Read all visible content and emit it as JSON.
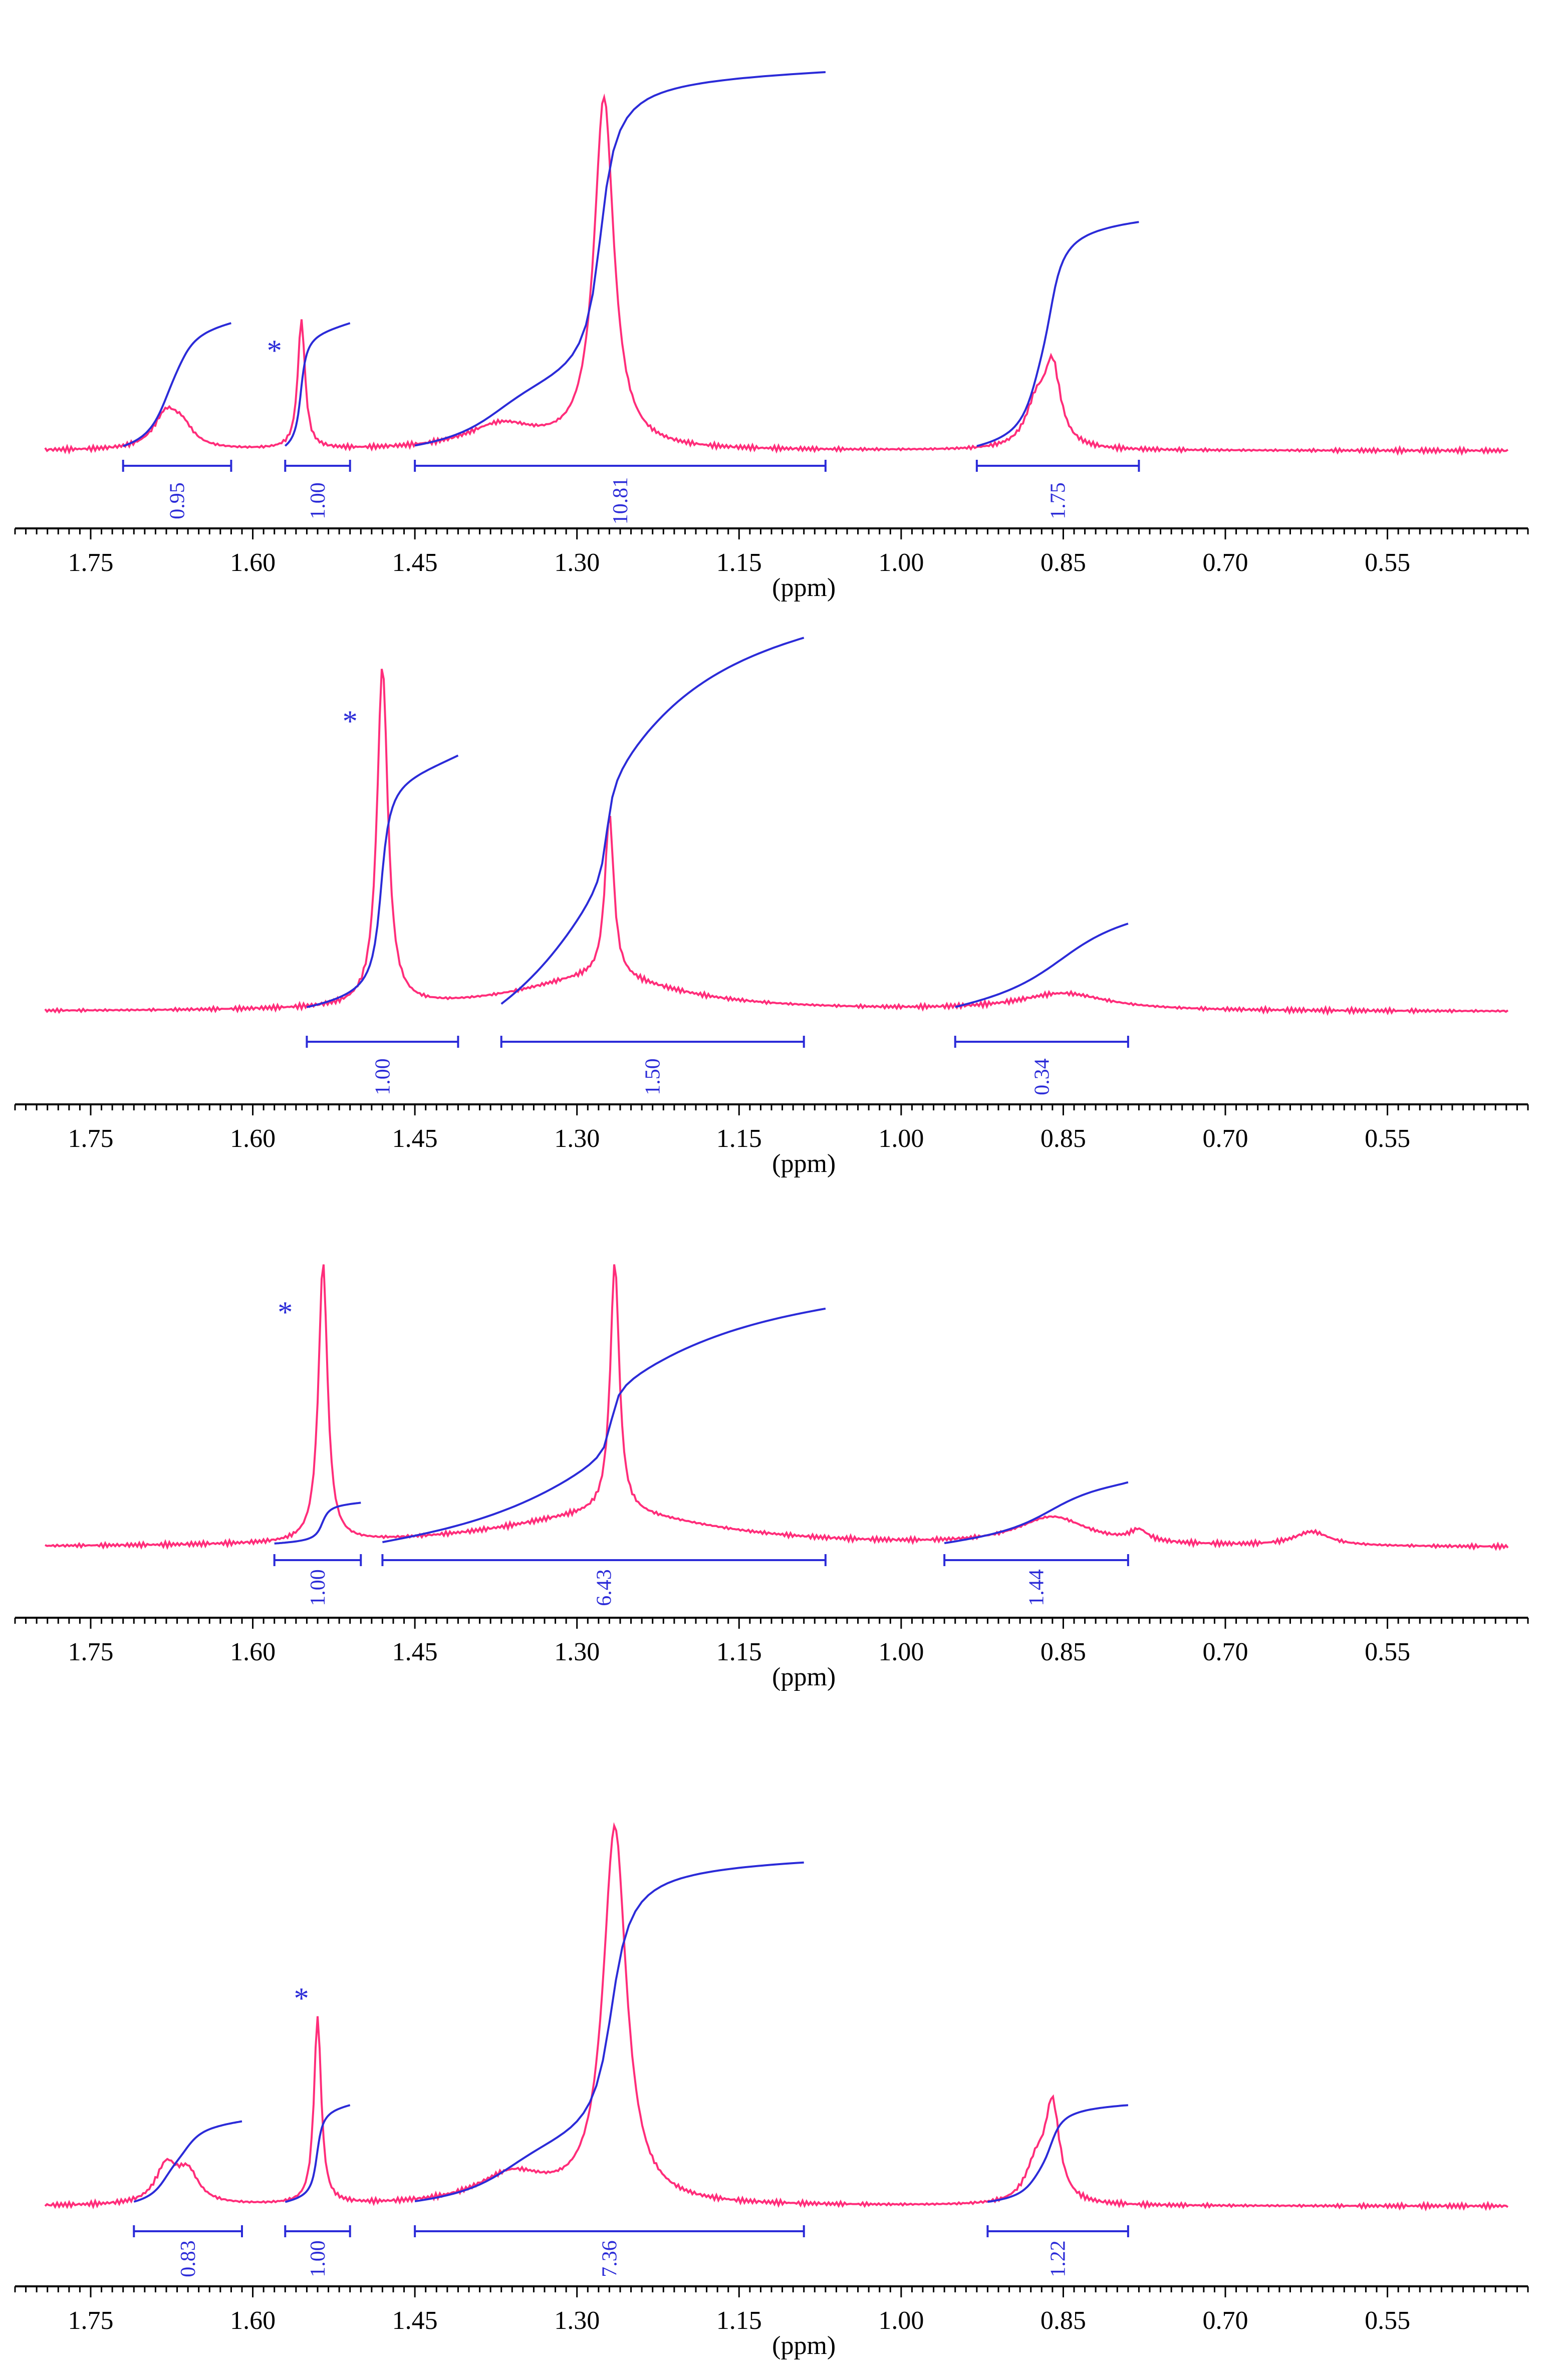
{
  "colors": {
    "spectrum": "#ff2d7a",
    "integral": "#2b2bd8",
    "axis": "#000000"
  },
  "chart_data": [
    {
      "type": "line",
      "title": "",
      "xlabel": "(ppm)",
      "xlim": [
        1.82,
        0.42
      ],
      "ticks": [
        "1.75",
        "1.60",
        "1.45",
        "1.30",
        "1.15",
        "1.00",
        "0.85",
        "0.70",
        "0.55"
      ],
      "marker": {
        "label": "*",
        "ppm": 1.58
      },
      "peaks": [
        {
          "ppm": 1.68,
          "height": 0.1,
          "width": 0.014
        },
        {
          "ppm": 1.665,
          "height": 0.05,
          "width": 0.012
        },
        {
          "ppm": 1.555,
          "height": 0.37,
          "width": 0.004
        },
        {
          "ppm": 1.37,
          "height": 0.07,
          "width": 0.04
        },
        {
          "ppm": 1.275,
          "height": 1.0,
          "width": 0.011
        },
        {
          "ppm": 0.86,
          "height": 0.22,
          "width": 0.009
        },
        {
          "ppm": 0.875,
          "height": 0.12,
          "width": 0.012
        }
      ],
      "integrals": [
        {
          "value": "0.95",
          "from": 1.72,
          "to": 1.62,
          "curve_top": 0.33
        },
        {
          "value": "1.00",
          "from": 1.57,
          "to": 1.51,
          "curve_top": 0.33
        },
        {
          "value": "10.81",
          "from": 1.45,
          "to": 1.07,
          "curve_top": 1.0
        },
        {
          "value": "1.75",
          "from": 0.93,
          "to": 0.78,
          "curve_top": 0.6
        }
      ]
    },
    {
      "type": "line",
      "title": "",
      "xlabel": "(ppm)",
      "xlim": [
        1.82,
        0.42
      ],
      "ticks": [
        "1.75",
        "1.60",
        "1.45",
        "1.30",
        "1.15",
        "1.00",
        "0.85",
        "0.70",
        "0.55"
      ],
      "marker": {
        "label": "*",
        "ppm": 1.51
      },
      "peaks": [
        {
          "ppm": 1.48,
          "height": 1.0,
          "width": 0.006
        },
        {
          "ppm": 1.27,
          "height": 0.48,
          "width": 0.005
        },
        {
          "ppm": 1.28,
          "height": 0.1,
          "width": 0.09
        },
        {
          "ppm": 0.85,
          "height": 0.05,
          "width": 0.05
        }
      ],
      "integrals": [
        {
          "value": "1.00",
          "from": 1.55,
          "to": 1.41,
          "curve_top": 0.75
        },
        {
          "value": "1.50",
          "from": 1.37,
          "to": 1.09,
          "curve_top": 1.1
        },
        {
          "value": "0.34",
          "from": 0.95,
          "to": 0.79,
          "curve_top": 0.25
        }
      ]
    },
    {
      "type": "line",
      "title": "",
      "xlabel": "(ppm)",
      "xlim": [
        1.82,
        0.42
      ],
      "ticks": [
        "1.75",
        "1.60",
        "1.45",
        "1.30",
        "1.15",
        "1.00",
        "0.85",
        "0.70",
        "0.55"
      ],
      "marker": {
        "label": "*",
        "ppm": 1.57
      },
      "peaks": [
        {
          "ppm": 1.535,
          "height": 1.0,
          "width": 0.005
        },
        {
          "ppm": 1.265,
          "height": 0.9,
          "width": 0.005
        },
        {
          "ppm": 1.27,
          "height": 0.12,
          "width": 0.12
        },
        {
          "ppm": 0.86,
          "height": 0.1,
          "width": 0.04
        },
        {
          "ppm": 0.78,
          "height": 0.04,
          "width": 0.01
        },
        {
          "ppm": 0.62,
          "height": 0.05,
          "width": 0.02
        }
      ],
      "integrals": [
        {
          "value": "1.00",
          "from": 1.58,
          "to": 1.5,
          "curve_top": 0.2
        },
        {
          "value": "6.43",
          "from": 1.48,
          "to": 1.07,
          "curve_top": 1.15
        },
        {
          "value": "1.44",
          "from": 0.96,
          "to": 0.79,
          "curve_top": 0.3
        }
      ]
    },
    {
      "type": "line",
      "title": "",
      "xlabel": "(ppm)",
      "xlim": [
        1.82,
        0.42
      ],
      "ticks": [
        "1.75",
        "1.60",
        "1.45",
        "1.30",
        "1.15",
        "1.00",
        "0.85",
        "0.70",
        "0.55"
      ],
      "marker": {
        "label": "*",
        "ppm": 1.555
      },
      "peaks": [
        {
          "ppm": 1.68,
          "height": 0.1,
          "width": 0.012
        },
        {
          "ppm": 1.66,
          "height": 0.08,
          "width": 0.012
        },
        {
          "ppm": 1.54,
          "height": 0.5,
          "width": 0.004
        },
        {
          "ppm": 1.36,
          "height": 0.08,
          "width": 0.04
        },
        {
          "ppm": 1.265,
          "height": 1.0,
          "width": 0.013
        },
        {
          "ppm": 0.86,
          "height": 0.25,
          "width": 0.008
        },
        {
          "ppm": 0.875,
          "height": 0.1,
          "width": 0.012
        }
      ],
      "integrals": [
        {
          "value": "0.83",
          "from": 1.71,
          "to": 1.61,
          "curve_top": 0.25
        },
        {
          "value": "1.00",
          "from": 1.57,
          "to": 1.51,
          "curve_top": 0.3
        },
        {
          "value": "7.36",
          "from": 1.45,
          "to": 1.09,
          "curve_top": 1.05
        },
        {
          "value": "1.22",
          "from": 0.92,
          "to": 0.79,
          "curve_top": 0.3
        }
      ]
    }
  ]
}
